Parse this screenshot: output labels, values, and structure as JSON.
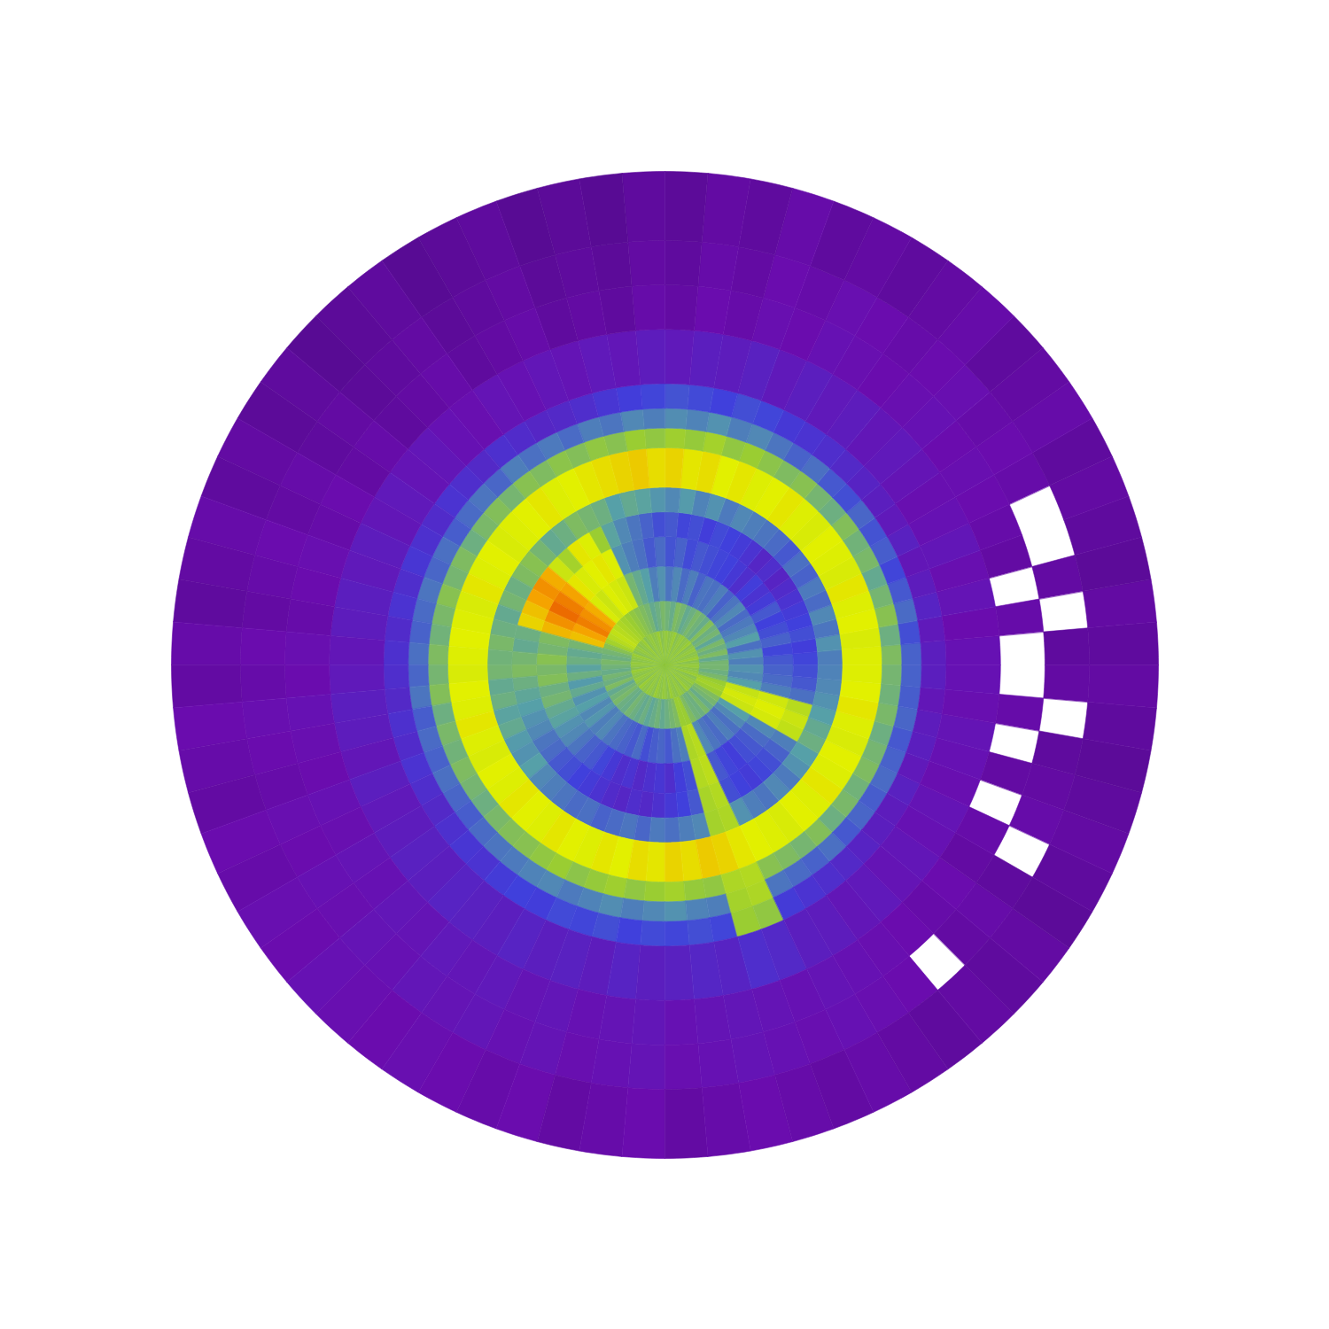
{
  "chart_data": {
    "type": "polar_heatmap",
    "value_range": [
      0,
      1
    ],
    "radius_edges": [
      0,
      7,
      13,
      20,
      26,
      31,
      36,
      44,
      48,
      52,
      57,
      68,
      77,
      86,
      100
    ],
    "angle_edges": [
      0,
      5,
      10,
      15,
      20,
      25,
      30,
      35,
      40,
      45,
      50,
      55,
      60,
      65,
      70,
      75,
      80,
      85,
      90,
      95,
      100,
      105,
      110,
      115,
      120,
      125,
      130,
      135,
      140,
      145,
      150,
      155,
      160,
      165,
      170,
      175,
      180,
      185,
      190,
      195,
      200,
      205,
      210,
      215,
      220,
      225,
      230,
      235,
      240,
      245,
      250,
      255,
      260,
      265,
      270,
      275,
      280,
      285,
      290,
      295,
      300,
      305,
      310,
      315,
      320,
      325,
      330,
      335,
      340,
      345,
      350,
      355,
      360
    ],
    "cells": [
      [
        0.68,
        0.66,
        0.7,
        0.68,
        0.67,
        0.69,
        0.68,
        0.66,
        0.7,
        0.68,
        0.67,
        0.69,
        0.68,
        0.66,
        0.7,
        0.68,
        0.67,
        0.69,
        0.68,
        0.66,
        0.7,
        0.68,
        0.67,
        0.69,
        0.68,
        0.66,
        0.7,
        0.68,
        0.67,
        0.69,
        0.68,
        0.66,
        0.7,
        0.68,
        0.67,
        0.69,
        0.68,
        0.66,
        0.7,
        0.68,
        0.67,
        0.69,
        0.68,
        0.66,
        0.7,
        0.68,
        0.67,
        0.69,
        0.68,
        0.66,
        0.7,
        0.68,
        0.67,
        0.69,
        0.68,
        0.66,
        0.7,
        0.68,
        0.67,
        0.69,
        0.68,
        0.66,
        0.7,
        0.68,
        0.67,
        0.69,
        0.68,
        0.66,
        0.7,
        0.68,
        0.67,
        0.69
      ],
      [
        0.62,
        0.58,
        0.64,
        0.6,
        0.63,
        0.57,
        0.62,
        0.6,
        0.65,
        0.59,
        0.61,
        0.63,
        0.6,
        0.58,
        0.62,
        0.64,
        0.59,
        0.61,
        0.63,
        0.6,
        0.58,
        0.62,
        0.64,
        0.66,
        0.68,
        0.7,
        0.72,
        0.74,
        0.76,
        0.78,
        0.76,
        0.72,
        0.66,
        0.62,
        0.6,
        0.63,
        0.61,
        0.59,
        0.62,
        0.6,
        0.64,
        0.58,
        0.61,
        0.63,
        0.6,
        0.59,
        0.62,
        0.6,
        0.58,
        0.6,
        0.57,
        0.59,
        0.61,
        0.58,
        0.6,
        0.62,
        0.64,
        0.7,
        0.7,
        0.64,
        0.61,
        0.6,
        0.63,
        0.59,
        0.62,
        0.64,
        0.7,
        0.72,
        0.7,
        0.63,
        0.6,
        0.62
      ],
      [
        0.48,
        0.52,
        0.45,
        0.55,
        0.5,
        0.47,
        0.44,
        0.5,
        0.46,
        0.42,
        0.48,
        0.45,
        0.46,
        0.42,
        0.48,
        0.44,
        0.5,
        0.46,
        0.52,
        0.48,
        0.55,
        0.58,
        0.62,
        0.8,
        0.82,
        0.84,
        0.8,
        0.83,
        0.92,
        0.94,
        0.95,
        0.93,
        0.9,
        0.62,
        0.58,
        0.6,
        0.56,
        0.6,
        0.54,
        0.58,
        0.52,
        0.55,
        0.5,
        0.53,
        0.48,
        0.5,
        0.46,
        0.44,
        0.42,
        0.4,
        0.44,
        0.38,
        0.41,
        0.43,
        0.4,
        0.45,
        0.48,
        0.74,
        0.76,
        0.5,
        0.46,
        0.44,
        0.48,
        0.45,
        0.5,
        0.55,
        0.8,
        0.82,
        0.79,
        0.55,
        0.5,
        0.52
      ],
      [
        0.4,
        0.36,
        0.42,
        0.38,
        0.35,
        0.4,
        0.33,
        0.3,
        0.34,
        0.28,
        0.32,
        0.35,
        0.36,
        0.38,
        0.4,
        0.37,
        0.42,
        0.39,
        0.44,
        0.4,
        0.45,
        0.48,
        0.52,
        0.84,
        0.86,
        0.85,
        0.83,
        0.86,
        0.93,
        0.95,
        0.96,
        0.94,
        0.91,
        0.64,
        0.62,
        0.66,
        0.63,
        0.65,
        0.6,
        0.62,
        0.58,
        0.56,
        0.52,
        0.5,
        0.46,
        0.42,
        0.4,
        0.36,
        0.32,
        0.28,
        0.3,
        0.26,
        0.29,
        0.31,
        0.28,
        0.34,
        0.38,
        0.75,
        0.77,
        0.4,
        0.36,
        0.34,
        0.38,
        0.4,
        0.44,
        0.5,
        0.82,
        0.84,
        0.81,
        0.48,
        0.44,
        0.42
      ],
      [
        0.36,
        0.34,
        0.38,
        0.35,
        0.33,
        0.3,
        0.27,
        0.24,
        0.28,
        0.25,
        0.3,
        0.33,
        0.35,
        0.37,
        0.34,
        0.38,
        0.36,
        0.4,
        0.38,
        0.42,
        0.46,
        0.5,
        0.56,
        0.7,
        0.84,
        0.86,
        0.72,
        0.8,
        0.92,
        0.94,
        0.93,
        0.9,
        0.88,
        0.6,
        0.58,
        0.62,
        0.64,
        0.6,
        0.57,
        0.55,
        0.52,
        0.5,
        0.46,
        0.44,
        0.4,
        0.38,
        0.35,
        0.33,
        0.3,
        0.27,
        0.25,
        0.28,
        0.26,
        0.29,
        0.32,
        0.35,
        0.4,
        0.73,
        0.75,
        0.38,
        0.35,
        0.33,
        0.36,
        0.38,
        0.42,
        0.48,
        0.78,
        0.8,
        0.76,
        0.45,
        0.4,
        0.38
      ],
      [
        0.48,
        0.52,
        0.46,
        0.5,
        0.44,
        0.47,
        0.42,
        0.45,
        0.4,
        0.44,
        0.46,
        0.48,
        0.5,
        0.47,
        0.52,
        0.49,
        0.54,
        0.5,
        0.53,
        0.56,
        0.58,
        0.55,
        0.6,
        0.62,
        0.64,
        0.6,
        0.58,
        0.62,
        0.66,
        0.64,
        0.6,
        0.62,
        0.58,
        0.6,
        0.63,
        0.61,
        0.62,
        0.58,
        0.6,
        0.56,
        0.58,
        0.54,
        0.52,
        0.55,
        0.5,
        0.48,
        0.46,
        0.44,
        0.45,
        0.42,
        0.44,
        0.46,
        0.43,
        0.47,
        0.45,
        0.48,
        0.5,
        0.72,
        0.74,
        0.52,
        0.48,
        0.46,
        0.5,
        0.47,
        0.52,
        0.55,
        0.6,
        0.58,
        0.55,
        0.52,
        0.5,
        0.49
      ],
      [
        0.84,
        0.83,
        0.85,
        0.84,
        0.86,
        0.83,
        0.84,
        0.85,
        0.83,
        0.84,
        0.86,
        0.85,
        0.84,
        0.86,
        0.85,
        0.87,
        0.86,
        0.88,
        0.87,
        0.89,
        0.88,
        0.87,
        0.86,
        0.85,
        0.84,
        0.86,
        0.85,
        0.84,
        0.83,
        0.85,
        0.84,
        0.86,
        0.83,
        0.84,
        0.85,
        0.84,
        0.83,
        0.85,
        0.84,
        0.86,
        0.84,
        0.83,
        0.85,
        0.84,
        0.86,
        0.85,
        0.84,
        0.86,
        0.85,
        0.84,
        0.86,
        0.85,
        0.87,
        0.86,
        0.88,
        0.87,
        0.89,
        0.88,
        0.86,
        0.85,
        0.84,
        0.83,
        0.85,
        0.84,
        0.86,
        0.84,
        0.85,
        0.83,
        0.84,
        0.86,
        0.85,
        0.84
      ],
      [
        0.64,
        0.6,
        0.66,
        0.62,
        0.58,
        0.63,
        0.61,
        0.65,
        0.6,
        0.62,
        0.66,
        0.64,
        0.67,
        0.7,
        0.68,
        0.72,
        0.69,
        0.71,
        0.68,
        0.7,
        0.66,
        0.68,
        0.65,
        0.67,
        0.64,
        0.66,
        0.62,
        0.65,
        0.63,
        0.6,
        0.64,
        0.62,
        0.66,
        0.63,
        0.61,
        0.64,
        0.62,
        0.65,
        0.6,
        0.63,
        0.61,
        0.64,
        0.62,
        0.6,
        0.63,
        0.65,
        0.66,
        0.68,
        0.7,
        0.67,
        0.69,
        0.71,
        0.68,
        0.7,
        0.72,
        0.69,
        0.68,
        0.74,
        0.75,
        0.66,
        0.64,
        0.62,
        0.65,
        0.6,
        0.63,
        0.61,
        0.64,
        0.62,
        0.6,
        0.63,
        0.61,
        0.62
      ],
      [
        0.42,
        0.38,
        0.44,
        0.4,
        0.36,
        0.41,
        0.39,
        0.43,
        0.38,
        0.4,
        0.45,
        0.42,
        0.46,
        0.5,
        0.48,
        0.52,
        0.49,
        0.51,
        0.48,
        0.5,
        0.46,
        0.48,
        0.44,
        0.47,
        0.45,
        0.48,
        0.43,
        0.46,
        0.44,
        0.41,
        0.45,
        0.43,
        0.46,
        0.44,
        0.42,
        0.45,
        0.43,
        0.46,
        0.41,
        0.44,
        0.42,
        0.45,
        0.43,
        0.41,
        0.44,
        0.46,
        0.47,
        0.49,
        0.5,
        0.47,
        0.49,
        0.51,
        0.48,
        0.5,
        0.52,
        0.49,
        0.48,
        0.72,
        0.74,
        0.46,
        0.44,
        0.42,
        0.45,
        0.4,
        0.43,
        0.41,
        0.44,
        0.42,
        0.4,
        0.43,
        0.41,
        0.42
      ],
      [
        0.22,
        0.2,
        0.24,
        0.21,
        0.19,
        0.23,
        0.2,
        0.22,
        0.24,
        0.26,
        0.28,
        0.3,
        0.32,
        0.36,
        0.38,
        0.35,
        0.37,
        0.39,
        0.36,
        0.34,
        0.31,
        0.28,
        0.26,
        0.25,
        0.27,
        0.29,
        0.26,
        0.28,
        0.3,
        0.27,
        0.29,
        0.31,
        0.28,
        0.3,
        0.27,
        0.29,
        0.28,
        0.26,
        0.29,
        0.27,
        0.3,
        0.28,
        0.26,
        0.29,
        0.31,
        0.3,
        0.33,
        0.35,
        0.34,
        0.37,
        0.36,
        0.38,
        0.35,
        0.37,
        0.36,
        0.38,
        0.36,
        0.7,
        0.68,
        0.33,
        0.3,
        0.28,
        0.26,
        0.24,
        0.22,
        0.21,
        0.23,
        0.2,
        0.22,
        0.21,
        0.19,
        0.22
      ],
      [
        0.17,
        0.15,
        0.18,
        0.16,
        0.19,
        0.17,
        0.16,
        0.18,
        0.2,
        0.19,
        0.21,
        0.2,
        0.22,
        0.2,
        0.23,
        0.21,
        0.22,
        0.2,
        0.21,
        0.19,
        0.2,
        0.18,
        0.19,
        0.17,
        0.18,
        0.16,
        0.17,
        0.19,
        0.18,
        0.2,
        0.19,
        0.21,
        0.2,
        0.22,
        0.21,
        0.19,
        0.2,
        0.22,
        0.21,
        0.19,
        0.22,
        0.2,
        0.21,
        0.23,
        0.22,
        0.24,
        0.23,
        0.22,
        0.24,
        0.22,
        0.23,
        0.21,
        0.24,
        0.22,
        0.23,
        0.25,
        0.24,
        0.28,
        0.26,
        0.22,
        0.21,
        0.19,
        0.2,
        0.18,
        0.19,
        0.17,
        0.18,
        0.16,
        0.17,
        0.18,
        0.16,
        0.17
      ],
      [
        null,
        0.14,
        null,
        0.13,
        0.14,
        0.15,
        0.16,
        0.15,
        0.17,
        0.16,
        0.15,
        0.16,
        0.17,
        0.15,
        0.16,
        0.14,
        0.15,
        0.13,
        0.14,
        0.12,
        0.13,
        0.12,
        0.14,
        0.13,
        0.12,
        0.14,
        0.13,
        0.12,
        0.14,
        0.13,
        0.15,
        0.14,
        0.16,
        0.15,
        0.14,
        0.16,
        0.15,
        0.17,
        0.16,
        0.15,
        0.17,
        0.16,
        0.18,
        0.17,
        0.19,
        0.18,
        0.2,
        0.19,
        0.2,
        0.18,
        0.19,
        0.17,
        0.18,
        0.19,
        0.17,
        0.18,
        0.19,
        0.18,
        0.17,
        0.18,
        0.17,
        0.16,
        0.15,
        0.14,
        0.15,
        0.13,
        0.14,
        null,
        0.13,
        null,
        0.14,
        null
      ],
      [
        0.12,
        null,
        0.13,
        null,
        null,
        0.14,
        0.15,
        0.14,
        0.16,
        0.15,
        0.14,
        0.15,
        0.16,
        0.14,
        0.15,
        0.13,
        0.14,
        0.12,
        0.13,
        0.11,
        0.12,
        0.11,
        0.13,
        0.12,
        0.11,
        0.13,
        0.12,
        0.11,
        0.13,
        0.12,
        0.14,
        0.13,
        0.15,
        0.14,
        0.13,
        0.15,
        0.14,
        0.16,
        0.15,
        0.14,
        0.16,
        0.15,
        0.17,
        0.16,
        0.18,
        0.17,
        0.19,
        0.18,
        0.19,
        0.17,
        0.18,
        0.16,
        0.17,
        0.18,
        0.16,
        0.17,
        0.18,
        0.17,
        0.16,
        0.17,
        0.16,
        0.15,
        null,
        0.13,
        0.14,
        0.12,
        null,
        0.14,
        0.13,
        0.12,
        null,
        0.13
      ],
      [
        0.12,
        0.13,
        0.11,
        0.12,
        0.13,
        0.12,
        0.14,
        0.13,
        0.12,
        0.14,
        0.13,
        0.12,
        0.13,
        0.12,
        0.14,
        0.12,
        0.13,
        0.11,
        0.12,
        0.1,
        0.11,
        0.1,
        0.12,
        0.11,
        0.1,
        0.12,
        0.11,
        0.1,
        0.12,
        0.11,
        0.13,
        0.12,
        0.14,
        0.13,
        0.12,
        0.14,
        0.13,
        0.15,
        0.14,
        0.13,
        0.15,
        0.14,
        0.16,
        0.15,
        0.17,
        0.16,
        0.15,
        0.16,
        0.15,
        0.14,
        0.15,
        0.13,
        0.14,
        0.15,
        0.13,
        0.14,
        0.15,
        0.14,
        0.13,
        0.14,
        0.13,
        0.12,
        0.13,
        0.12,
        0.13,
        0.11,
        0.12,
        0.13,
        0.12,
        0.11,
        0.12,
        0.13
      ]
    ]
  }
}
